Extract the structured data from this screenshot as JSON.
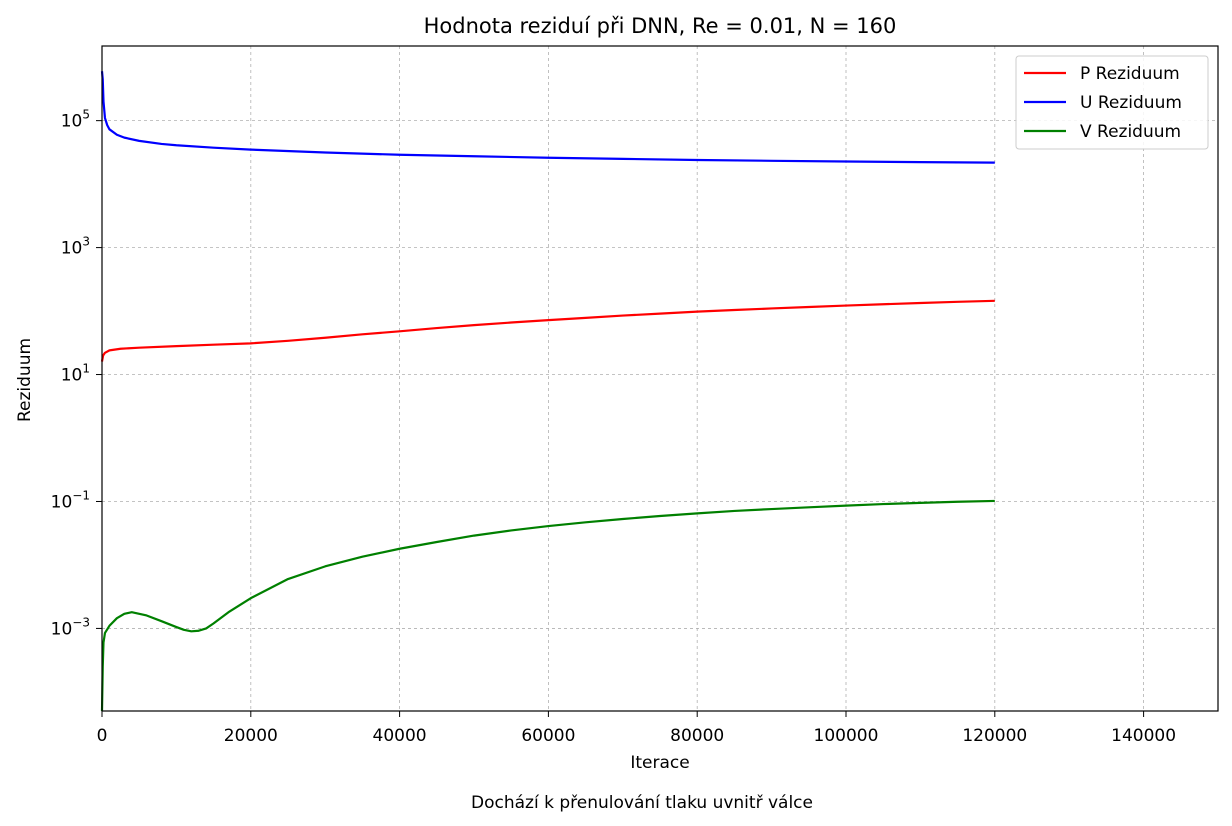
{
  "chart_data": {
    "type": "line",
    "title": "Hodnota reziduí při DNN, Re = 0.01, N = 160",
    "xlabel": "Iterace",
    "ylabel": "Reziduum",
    "caption": "Dochází k přenulování tlaku uvnitř válce",
    "yscale": "log",
    "xlim": [
      0,
      150000
    ],
    "ylim": [
      5e-05,
      1500000
    ],
    "xticks": [
      0,
      20000,
      40000,
      60000,
      80000,
      100000,
      120000,
      140000
    ],
    "xtick_labels": [
      "0",
      "20000",
      "40000",
      "60000",
      "80000",
      "100000",
      "120000",
      "140000"
    ],
    "yticks": [
      {
        "value": 0.001,
        "base": "10",
        "exp": "−3"
      },
      {
        "value": 0.1,
        "base": "10",
        "exp": "−1"
      },
      {
        "value": 10,
        "base": "10",
        "exp": "1"
      },
      {
        "value": 1000,
        "base": "10",
        "exp": "3"
      },
      {
        "value": 100000,
        "base": "10",
        "exp": "5"
      }
    ],
    "grid": true,
    "legend_position": "top-right",
    "series": [
      {
        "name": "P Reziduum",
        "color": "#ff0000",
        "points": [
          [
            0,
            16
          ],
          [
            150,
            20
          ],
          [
            400,
            22
          ],
          [
            1000,
            24
          ],
          [
            2500,
            25.5
          ],
          [
            5000,
            26.5
          ],
          [
            10000,
            28
          ],
          [
            15000,
            29.5
          ],
          [
            20000,
            31
          ],
          [
            25000,
            34
          ],
          [
            30000,
            38
          ],
          [
            35000,
            43
          ],
          [
            40000,
            48
          ],
          [
            45000,
            54
          ],
          [
            50000,
            60
          ],
          [
            55000,
            66
          ],
          [
            60000,
            72
          ],
          [
            65000,
            78
          ],
          [
            70000,
            85
          ],
          [
            75000,
            91
          ],
          [
            80000,
            98
          ],
          [
            85000,
            104
          ],
          [
            90000,
            110
          ],
          [
            95000,
            116
          ],
          [
            100000,
            122
          ],
          [
            105000,
            128
          ],
          [
            110000,
            134
          ],
          [
            115000,
            140
          ],
          [
            120000,
            145
          ]
        ]
      },
      {
        "name": "U Reziduum",
        "color": "#0000ff",
        "points": [
          [
            0,
            600000
          ],
          [
            100,
            450000
          ],
          [
            200,
            200000
          ],
          [
            400,
            110000
          ],
          [
            700,
            85000
          ],
          [
            1000,
            73000
          ],
          [
            2000,
            60000
          ],
          [
            3000,
            54000
          ],
          [
            5000,
            48000
          ],
          [
            8000,
            43000
          ],
          [
            10000,
            41000
          ],
          [
            15000,
            37500
          ],
          [
            20000,
            35000
          ],
          [
            30000,
            31500
          ],
          [
            40000,
            29000
          ],
          [
            50000,
            27500
          ],
          [
            60000,
            26000
          ],
          [
            70000,
            25000
          ],
          [
            80000,
            24000
          ],
          [
            90000,
            23300
          ],
          [
            100000,
            22700
          ],
          [
            110000,
            22200
          ],
          [
            120000,
            21800
          ]
        ]
      },
      {
        "name": "V Reziduum",
        "color": "#008000",
        "points": [
          [
            0,
            5e-05
          ],
          [
            100,
            0.00025
          ],
          [
            200,
            0.0006
          ],
          [
            400,
            0.00085
          ],
          [
            1000,
            0.0011
          ],
          [
            2000,
            0.00145
          ],
          [
            3000,
            0.0017
          ],
          [
            4000,
            0.0018
          ],
          [
            5000,
            0.0017
          ],
          [
            6000,
            0.0016
          ],
          [
            8000,
            0.0013
          ],
          [
            10000,
            0.00105
          ],
          [
            11000,
            0.00095
          ],
          [
            12000,
            0.0009
          ],
          [
            13000,
            0.00092
          ],
          [
            14000,
            0.001
          ],
          [
            15000,
            0.0012
          ],
          [
            17000,
            0.0018
          ],
          [
            20000,
            0.003
          ],
          [
            25000,
            0.006
          ],
          [
            30000,
            0.0095
          ],
          [
            35000,
            0.0135
          ],
          [
            40000,
            0.018
          ],
          [
            45000,
            0.023
          ],
          [
            50000,
            0.029
          ],
          [
            55000,
            0.035
          ],
          [
            60000,
            0.041
          ],
          [
            65000,
            0.047
          ],
          [
            70000,
            0.053
          ],
          [
            75000,
            0.059
          ],
          [
            80000,
            0.065
          ],
          [
            85000,
            0.071
          ],
          [
            90000,
            0.076
          ],
          [
            95000,
            0.081
          ],
          [
            100000,
            0.086
          ],
          [
            105000,
            0.091
          ],
          [
            110000,
            0.095
          ],
          [
            115000,
            0.099
          ],
          [
            120000,
            0.102
          ]
        ]
      }
    ]
  }
}
